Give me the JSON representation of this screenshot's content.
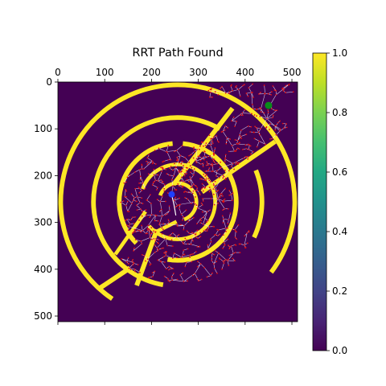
{
  "chart_data": [
    {
      "type": "heatmap",
      "title": "RRT Path Found",
      "x_ticks": [
        0,
        100,
        200,
        300,
        400,
        500
      ],
      "y_ticks": [
        0,
        100,
        200,
        300,
        400,
        500
      ],
      "x_tick_position": "top",
      "xlim": [
        0,
        512
      ],
      "ylim": [
        512,
        0
      ],
      "grid": false,
      "colormap": "viridis",
      "color_range": [
        0,
        1
      ],
      "obstacle_value": 1.0,
      "free_value": 0.0,
      "start_point": {
        "x": 243,
        "y": 240,
        "color": "#1f3fff",
        "marker": "circle"
      },
      "goal_point": {
        "x": 450,
        "y": 50,
        "color": "#0a8a1a",
        "marker": "circle"
      },
      "tree_edge_color": "#e8e8ff",
      "tree_node_color": "#e01010",
      "path_color": "#ffffff",
      "maze_walls": [
        {
          "kind": "arc",
          "cx": 256,
          "cy": 256,
          "r": 250,
          "start_deg": 124,
          "end_deg": 397,
          "width": 10
        },
        {
          "kind": "arc",
          "cx": 256,
          "cy": 256,
          "r": 180,
          "start_deg": 100,
          "end_deg": 300,
          "width": 10
        },
        {
          "kind": "arc",
          "cx": 256,
          "cy": 256,
          "r": 180,
          "start_deg": 338,
          "end_deg": 385,
          "width": 10
        },
        {
          "kind": "arc",
          "cx": 256,
          "cy": 256,
          "r": 125,
          "start_deg": 135,
          "end_deg": 265,
          "width": 10
        },
        {
          "kind": "arc",
          "cx": 256,
          "cy": 256,
          "r": 125,
          "start_deg": 275,
          "end_deg": 460,
          "width": 10
        },
        {
          "kind": "arc",
          "cx": 256,
          "cy": 256,
          "r": 80,
          "start_deg": 200,
          "end_deg": 500,
          "width": 8
        },
        {
          "kind": "arc",
          "cx": 256,
          "cy": 256,
          "r": 40,
          "start_deg": 200,
          "end_deg": 430,
          "width": 8
        },
        {
          "kind": "line",
          "x1": 312,
          "y1": 232,
          "x2": 460,
          "y2": 130,
          "width": 10
        },
        {
          "kind": "line",
          "x1": 250,
          "y1": 215,
          "x2": 370,
          "y2": 60,
          "width": 10
        },
        {
          "kind": "line",
          "x1": 150,
          "y1": 400,
          "x2": 90,
          "y2": 440,
          "width": 10
        },
        {
          "kind": "line",
          "x1": 170,
          "y1": 430,
          "x2": 210,
          "y2": 320,
          "width": 10
        },
        {
          "kind": "line",
          "x1": 210,
          "y1": 320,
          "x2": 250,
          "y2": 300,
          "width": 8
        },
        {
          "kind": "line",
          "x1": 125,
          "y1": 365,
          "x2": 185,
          "y2": 280,
          "width": 8
        }
      ],
      "explored_regions": [
        {
          "kind": "ring",
          "cx": 256,
          "cy": 256,
          "r_inner": 0,
          "r_outer": 122,
          "start_deg": 0,
          "end_deg": 360,
          "count": 420
        },
        {
          "kind": "ring",
          "cx": 256,
          "cy": 256,
          "r_inner": 130,
          "r_outer": 176,
          "start_deg": 20,
          "end_deg": 135,
          "count": 120
        },
        {
          "kind": "corridor",
          "x1": 270,
          "y1": 210,
          "x2": 470,
          "y2": 60,
          "half_width": 45,
          "count": 200
        },
        {
          "kind": "corridor",
          "x1": 320,
          "y1": 15,
          "x2": 505,
          "y2": 15,
          "half_width": 18,
          "count": 60
        }
      ]
    },
    {
      "type": "colorbar",
      "ticks": [
        "0.0",
        "0.2",
        "0.4",
        "0.6",
        "0.8",
        "1.0"
      ],
      "range": [
        0,
        1
      ]
    }
  ]
}
